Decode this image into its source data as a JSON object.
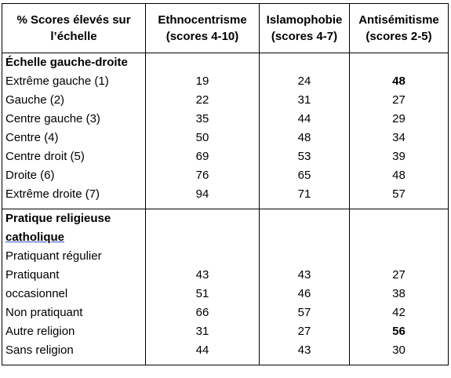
{
  "table": {
    "header": [
      [
        "% Scores élevés sur",
        "l’échelle"
      ],
      [
        "Ethnocentrisme",
        "(scores 4-10)"
      ],
      [
        "Islamophobie",
        "(scores 4-7)"
      ],
      [
        "Antisémitisme",
        "(scores 2-5)"
      ]
    ],
    "sections": [
      {
        "title": [
          "Échelle gauche-droite"
        ],
        "rows": [
          {
            "label": "Extrême gauche (1)",
            "values": [
              19,
              24,
              48
            ],
            "bold": [
              2
            ]
          },
          {
            "label": "Gauche (2)",
            "values": [
              22,
              31,
              27
            ]
          },
          {
            "label": "Centre gauche (3)",
            "values": [
              35,
              44,
              29
            ]
          },
          {
            "label": "Centre (4)",
            "values": [
              50,
              48,
              34
            ]
          },
          {
            "label": "Centre droit (5)",
            "values": [
              69,
              53,
              39
            ]
          },
          {
            "label": "Droite (6)",
            "values": [
              76,
              65,
              48
            ]
          },
          {
            "label": "Extrême droite (7)",
            "values": [
              94,
              71,
              57
            ]
          }
        ]
      },
      {
        "title": [
          "Pratique religieuse",
          "catholique"
        ],
        "rows": [
          {
            "label": "Pratiquant régulier"
          },
          {
            "label": "Pratiquant",
            "values": [
              43,
              43,
              27
            ]
          },
          {
            "label": "occasionnel",
            "values": [
              51,
              46,
              38
            ]
          },
          {
            "label": "Non pratiquant",
            "values": [
              66,
              57,
              42
            ]
          },
          {
            "label": "Autre religion",
            "values": [
              31,
              27,
              56
            ],
            "bold": [
              2
            ]
          },
          {
            "label": "Sans religion",
            "values": [
              44,
              43,
              30
            ]
          }
        ]
      }
    ]
  }
}
